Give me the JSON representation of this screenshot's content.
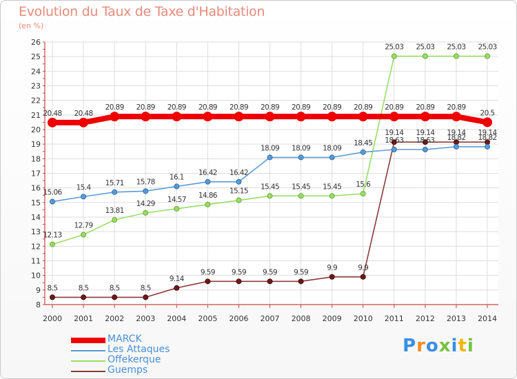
{
  "title": "Evolution du Taux de Taxe d'Habitation",
  "unit_label": "(en %)",
  "logo_text": "Proxiti",
  "chart_data": {
    "type": "line",
    "title": "Evolution du Taux de Taxe d'Habitation",
    "ylabel": "(en %)",
    "xlabel": "",
    "x": [
      "2000",
      "2001",
      "2002",
      "2003",
      "2004",
      "2005",
      "2006",
      "2007",
      "2008",
      "2009",
      "2010",
      "2011",
      "2012",
      "2013",
      "2014"
    ],
    "ylim": [
      8,
      26
    ],
    "yticks": [
      8,
      9,
      10,
      11,
      12,
      13,
      14,
      15,
      16,
      17,
      18,
      19,
      20,
      21,
      22,
      23,
      24,
      25,
      26
    ],
    "grid": true,
    "legend_position": "bottom-left",
    "series": [
      {
        "name": "MARCK",
        "color": "#ee0000",
        "values": [
          20.48,
          20.48,
          20.89,
          20.89,
          20.89,
          20.89,
          20.89,
          20.89,
          20.89,
          20.89,
          20.89,
          20.89,
          20.89,
          20.89,
          20.5
        ],
        "labels": [
          "20.48",
          "20.48",
          "20.89",
          "20.89",
          "20.89",
          "20.89",
          "20.89",
          "20.89",
          "20.89",
          "20.89",
          "20.89",
          "20.89",
          "20.89",
          "20.89",
          "20.5"
        ]
      },
      {
        "name": "Les Attaques",
        "color": "#5b9bd5",
        "values": [
          15.06,
          15.4,
          15.71,
          15.78,
          16.1,
          16.42,
          16.42,
          18.09,
          18.09,
          18.09,
          18.45,
          18.63,
          18.63,
          18.82,
          18.82
        ],
        "labels": [
          "15.06",
          "15.4",
          "15.71",
          "15.78",
          "16.1",
          "16.42",
          "16.42",
          "18.09",
          "18.09",
          "18.09",
          "18.45",
          "18.63",
          "18.63",
          "18.82",
          "18.82"
        ]
      },
      {
        "name": "Offekerque",
        "color": "#99dd66",
        "values": [
          12.13,
          12.79,
          13.81,
          14.29,
          14.57,
          14.86,
          15.15,
          15.45,
          15.45,
          15.45,
          15.6,
          25.03,
          25.03,
          25.03,
          25.03
        ],
        "labels": [
          "12.13",
          "12.79",
          "13.81",
          "14.29",
          "14.57",
          "14.86",
          "15.15",
          "15.45",
          "15.45",
          "15.45",
          "15.6",
          "25.03",
          "25.03",
          "25.03",
          "25.03"
        ]
      },
      {
        "name": "Guemps",
        "color": "#8b3a3a",
        "values": [
          8.5,
          8.5,
          8.5,
          8.5,
          9.14,
          9.59,
          9.59,
          9.59,
          9.59,
          9.9,
          9.9,
          19.14,
          19.14,
          19.14,
          19.14
        ],
        "labels": [
          "8.5",
          "8.5",
          "8.5",
          "8.5",
          "9.14",
          "9.59",
          "9.59",
          "9.59",
          "9.59",
          "9.9",
          "9.9",
          "19.14",
          "19.14",
          "19.14",
          "19.14"
        ]
      }
    ]
  }
}
